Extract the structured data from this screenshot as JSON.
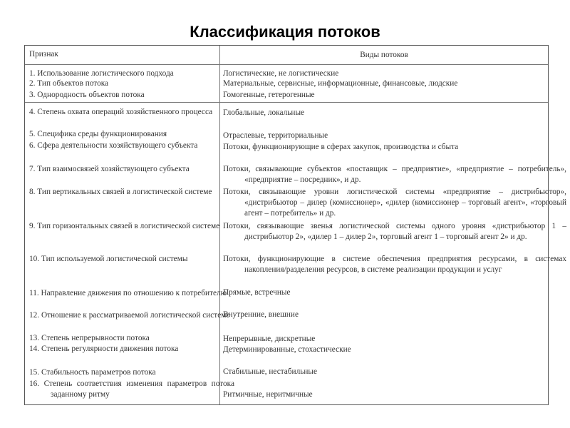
{
  "title": "Классификация потоков",
  "table": {
    "headers": [
      "Признак",
      "Виды потоков"
    ],
    "group1": {
      "criteria": [
        "1. Использование логистического подхода",
        "2. Тип объектов потока",
        "3. Однородность объектов потока"
      ],
      "types": [
        "Логистические, не логистические",
        "Материальные, сервисные, информационные, финансовые, людские",
        "Гомогенные, гетерогенные"
      ]
    },
    "group2": {
      "criteria": [
        "4. Степень охвата операций хозяйственного процесса",
        "5. Специфика среды функционирования",
        "6. Сфера деятельности хозяйствующего субъекта",
        "7. Тип взаимосвязей хозяйствующего субъекта",
        "8. Тип вертикальных связей в логистической системе",
        "9. Тип горизонтальных связей в логистической системе",
        "10. Тип используемой логистической системы",
        "11. Направление движения по отношению к потребителю",
        "12. Отношение к рассматриваемой логистической системе",
        "13. Степень непрерывности потока",
        "14. Степень регулярности движения потока",
        "15. Стабильность параметров потока",
        "16. Степень соответствия изменения параметров потока заданному ритму"
      ],
      "types": [
        "Глобальные, локальные",
        "Отраслевые, территориальные",
        "Потоки, функционирующие в сферах закупок, производства и сбыта",
        "Потоки, связывающие субъектов «поставщик – предприятие», «предприятие – потребитель», «предприятие – посредник», и др.",
        "Потоки, связывающие уровни логистической системы «предприятие – дистрибьютор», «дистрибьютор – дилер (комиссионер», «дилер (комиссионер – торговый агент», «торговый агент – потребитель» и др.",
        "Потоки, связывающие звенья логистической системы одного уровня «дистрибьютор 1 – дистрибьютор 2», «дилер 1 – дилер 2», торговый агент 1 – торговый агент 2» и др.",
        "Потоки, функционирующие в системе обеспечения предприятия ресурсами, в системах накопления/разделения ресурсов, в системе реализации продукции и услуг",
        "Прямые, встречные",
        "Внутренние, внешние",
        "Непрерывные, дискретные",
        "Детерминированные, стохастические",
        "Стабильные, нестабильные",
        "Ритмичные, неритмичные"
      ]
    }
  }
}
